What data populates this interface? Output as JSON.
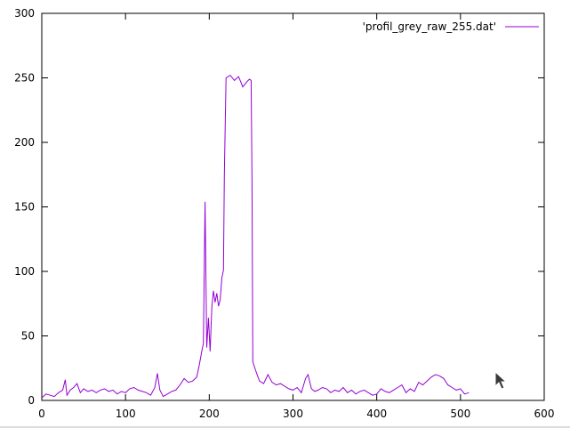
{
  "chart_data": {
    "type": "line",
    "title": "",
    "xlabel": "",
    "ylabel": "",
    "xlim": [
      0,
      600
    ],
    "ylim": [
      0,
      300
    ],
    "x_ticks": [
      0,
      100,
      200,
      300,
      400,
      500,
      600
    ],
    "y_ticks": [
      0,
      50,
      100,
      150,
      200,
      250,
      300
    ],
    "grid": false,
    "legend_position": "top-right",
    "series": [
      {
        "name": "'profil_grey_raw_255.dat'",
        "color": "#9400d3",
        "x": [
          0,
          5,
          10,
          15,
          20,
          25,
          28,
          30,
          34,
          38,
          42,
          46,
          50,
          55,
          60,
          65,
          70,
          75,
          80,
          85,
          90,
          95,
          100,
          105,
          110,
          115,
          120,
          125,
          130,
          135,
          138,
          141,
          145,
          150,
          155,
          160,
          165,
          170,
          175,
          180,
          185,
          188,
          191,
          193,
          195,
          197,
          199,
          201,
          203,
          205,
          207,
          209,
          211,
          213,
          215,
          217,
          218,
          220,
          225,
          230,
          235,
          240,
          245,
          248,
          250,
          251,
          252,
          253,
          256,
          260,
          265,
          270,
          275,
          280,
          285,
          290,
          295,
          300,
          305,
          310,
          315,
          318,
          322,
          326,
          330,
          335,
          340,
          345,
          350,
          355,
          360,
          365,
          370,
          375,
          380,
          385,
          390,
          395,
          400,
          405,
          410,
          415,
          420,
          425,
          430,
          435,
          440,
          445,
          450,
          455,
          460,
          465,
          470,
          475,
          480,
          485,
          490,
          495,
          500,
          505,
          510
        ],
        "y": [
          2,
          5,
          4,
          3,
          6,
          8,
          16,
          4,
          8,
          10,
          13,
          6,
          9,
          7,
          8,
          6,
          8,
          9,
          7,
          8,
          5,
          7,
          6,
          9,
          10,
          8,
          7,
          6,
          4,
          10,
          21,
          8,
          3,
          5,
          7,
          8,
          12,
          17,
          14,
          15,
          18,
          27,
          38,
          44,
          154,
          41,
          64,
          38,
          72,
          85,
          76,
          83,
          73,
          78,
          95,
          101,
          175,
          250,
          252,
          248,
          251,
          243,
          247,
          249,
          248,
          170,
          30,
          28,
          22,
          15,
          13,
          20,
          14,
          12,
          13,
          11,
          9,
          8,
          10,
          6,
          17,
          20,
          9,
          7,
          8,
          10,
          9,
          6,
          8,
          7,
          10,
          6,
          8,
          5,
          7,
          8,
          6,
          4,
          5,
          9,
          7,
          6,
          8,
          10,
          12,
          6,
          9,
          7,
          14,
          12,
          15,
          18,
          20,
          19,
          17,
          12,
          10,
          8,
          9,
          5,
          6
        ]
      }
    ]
  },
  "legend": {
    "label": "'profil_grey_raw_255.dat'"
  },
  "cursor": {
    "icon": "mouse-pointer-icon"
  }
}
